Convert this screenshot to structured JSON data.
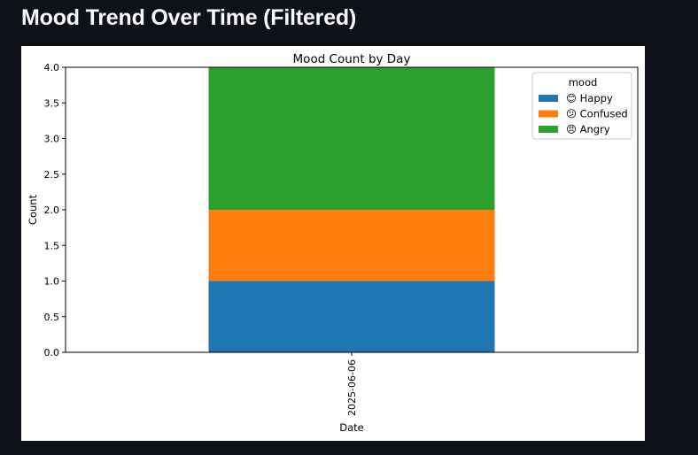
{
  "page": {
    "title": "Mood Trend Over Time (Filtered)"
  },
  "chart_data": {
    "type": "bar",
    "stacked": true,
    "title": "Mood Count by Day",
    "xlabel": "Date",
    "ylabel": "Count",
    "categories": [
      "2025-06-06"
    ],
    "series": [
      {
        "name": "😊 Happy",
        "values": [
          1
        ],
        "color": "#1f77b4"
      },
      {
        "name": "😕 Confused",
        "values": [
          1
        ],
        "color": "#ff7f0e"
      },
      {
        "name": "😠 Angry",
        "values": [
          2
        ],
        "color": "#2ca02c"
      }
    ],
    "ylim": [
      0,
      4.0
    ],
    "yticks": [
      "0.0",
      "0.5",
      "1.0",
      "1.5",
      "2.0",
      "2.5",
      "3.0",
      "3.5",
      "4.0"
    ],
    "legend": {
      "title": "mood",
      "placement": "top-right"
    },
    "grid": false
  }
}
